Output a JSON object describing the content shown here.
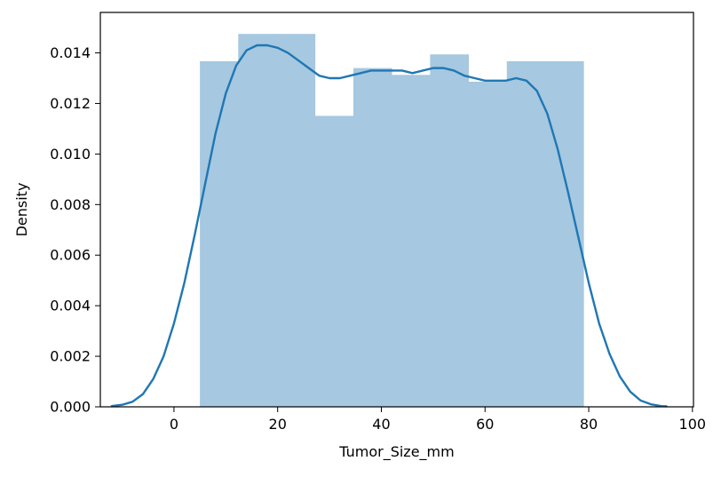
{
  "chart_data": {
    "type": "histogram",
    "xlabel": "Tumor_Size_mm",
    "ylabel": "Density",
    "xlim": [
      -14.2,
      100.2
    ],
    "ylim": [
      0,
      0.0156
    ],
    "xticks": [
      0,
      20,
      40,
      60,
      80,
      100
    ],
    "xtick_labels": [
      "0",
      "20",
      "40",
      "60",
      "80",
      "100"
    ],
    "yticks": [
      0.0,
      0.002,
      0.004,
      0.006,
      0.008,
      0.01,
      0.012,
      0.014
    ],
    "ytick_labels": [
      "0.000",
      "0.002",
      "0.004",
      "0.006",
      "0.008",
      "0.010",
      "0.012",
      "0.014"
    ],
    "grid": false,
    "bars": [
      {
        "x0": 5.0,
        "x1": 12.4,
        "density": 0.01367
      },
      {
        "x0": 12.4,
        "x1": 19.8,
        "density": 0.01475
      },
      {
        "x0": 19.8,
        "x1": 27.2,
        "density": 0.01475
      },
      {
        "x0": 27.2,
        "x1": 34.6,
        "density": 0.01151
      },
      {
        "x0": 34.6,
        "x1": 42.0,
        "density": 0.0134
      },
      {
        "x0": 42.0,
        "x1": 49.4,
        "density": 0.01313
      },
      {
        "x0": 49.4,
        "x1": 56.8,
        "density": 0.01394
      },
      {
        "x0": 56.8,
        "x1": 64.2,
        "density": 0.01286
      },
      {
        "x0": 64.2,
        "x1": 71.6,
        "density": 0.01367
      },
      {
        "x0": 71.6,
        "x1": 79.0,
        "density": 0.01367
      }
    ],
    "kde": {
      "x": [
        -12,
        -10,
        -8,
        -6,
        -4,
        -2,
        0,
        2,
        4,
        6,
        8,
        10,
        12,
        14,
        16,
        18,
        20,
        22,
        24,
        26,
        28,
        30,
        32,
        34,
        36,
        38,
        40,
        42,
        44,
        46,
        48,
        50,
        52,
        54,
        56,
        58,
        60,
        62,
        64,
        66,
        68,
        70,
        72,
        74,
        76,
        78,
        80,
        82,
        84,
        86,
        88,
        90,
        92,
        94,
        95
      ],
      "y": [
        3e-05,
        8e-05,
        0.0002,
        0.0005,
        0.0011,
        0.002,
        0.0033,
        0.0049,
        0.0068,
        0.0088,
        0.0108,
        0.0124,
        0.0135,
        0.0141,
        0.0143,
        0.0143,
        0.0142,
        0.014,
        0.0137,
        0.0134,
        0.0131,
        0.013,
        0.013,
        0.0131,
        0.0132,
        0.0133,
        0.0133,
        0.0133,
        0.0133,
        0.0132,
        0.0133,
        0.0134,
        0.0134,
        0.0133,
        0.0131,
        0.013,
        0.0129,
        0.0129,
        0.0129,
        0.013,
        0.0129,
        0.0125,
        0.0116,
        0.0102,
        0.0085,
        0.0067,
        0.0049,
        0.0033,
        0.0021,
        0.0012,
        0.0006,
        0.00025,
        0.0001,
        3e-05,
        2e-05
      ]
    },
    "colors": {
      "bars": "#a6c8e0",
      "kde": "#1f77b4"
    }
  }
}
